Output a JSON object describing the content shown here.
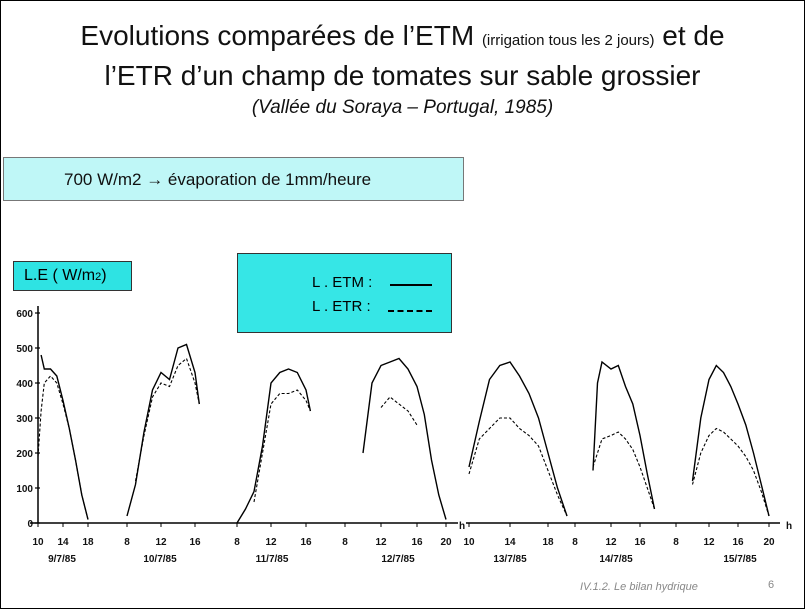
{
  "title": {
    "line1_main": "Evolutions comparées de l’ETM",
    "line1_small": "(irrigation tous les 2 jours)",
    "line1_end": "et de",
    "line2": "l’ETR d’un champ de tomates sur sable grossier",
    "line3": "(Vallée du Soraya – Portugal, 1985)"
  },
  "note": "700 W/m2 → évaporation de 1mm/heure",
  "ylabel_main": "L.E ( W/m",
  "ylabel_sub": "2",
  "ylabel_end": ")",
  "legend": {
    "etm": "L . ETM :",
    "etr": "L . ETR :"
  },
  "footer": {
    "text": "IV.1.2. Le bilan hydrique",
    "page": "6"
  },
  "chart_data": {
    "type": "line",
    "ylim": [
      0,
      600
    ],
    "yticks": [
      "0",
      "100",
      "200",
      "300",
      "400",
      "500",
      "600"
    ],
    "x_unit_label": "h",
    "hours_axis": [
      "10",
      "14",
      "18",
      "8",
      "12",
      "16",
      "8",
      "12",
      "16",
      "8",
      "12",
      "16",
      "20",
      "10",
      "14",
      "18",
      "8",
      "12",
      "16",
      "8",
      "12",
      "16",
      "20"
    ],
    "series": [
      {
        "name": "L . ETM",
        "days": [
          {
            "date": "9/7/85",
            "points": [
              [
                10.5,
                480
              ],
              [
                11,
                440
              ],
              [
                12,
                440
              ],
              [
                13,
                420
              ],
              [
                14,
                350
              ],
              [
                15,
                270
              ],
              [
                16,
                180
              ],
              [
                17,
                80
              ],
              [
                18,
                10
              ]
            ]
          },
          {
            "date": "10/7/85",
            "points": [
              [
                8,
                20
              ],
              [
                9,
                110
              ],
              [
                10,
                260
              ],
              [
                11,
                380
              ],
              [
                12,
                430
              ],
              [
                13,
                410
              ],
              [
                14,
                500
              ],
              [
                15,
                510
              ],
              [
                16,
                430
              ],
              [
                16.5,
                340
              ]
            ]
          },
          {
            "date": "11/7/85",
            "points": [
              [
                8,
                0
              ],
              [
                9,
                40
              ],
              [
                10,
                90
              ],
              [
                11,
                220
              ],
              [
                12,
                400
              ],
              [
                13,
                430
              ],
              [
                14,
                440
              ],
              [
                15,
                430
              ],
              [
                16,
                380
              ],
              [
                16.5,
                320
              ]
            ]
          },
          {
            "date": "12/7/85",
            "points": [
              [
                10,
                200
              ],
              [
                11,
                400
              ],
              [
                12,
                450
              ],
              [
                13,
                460
              ],
              [
                14,
                470
              ],
              [
                15,
                440
              ],
              [
                16,
                390
              ],
              [
                17,
                310
              ],
              [
                18,
                180
              ],
              [
                19,
                80
              ],
              [
                20,
                10
              ]
            ]
          },
          {
            "date": "13/7/85",
            "points": [
              [
                10,
                160
              ],
              [
                11,
                290
              ],
              [
                12,
                410
              ],
              [
                13,
                450
              ],
              [
                14,
                460
              ],
              [
                15,
                420
              ],
              [
                16,
                370
              ],
              [
                17,
                300
              ],
              [
                18,
                200
              ],
              [
                19,
                100
              ],
              [
                20,
                20
              ]
            ]
          },
          {
            "date": "14/7/85",
            "points": [
              [
                10,
                150
              ],
              [
                10.5,
                400
              ],
              [
                11,
                460
              ],
              [
                12,
                440
              ],
              [
                13,
                450
              ],
              [
                14,
                390
              ],
              [
                15,
                340
              ],
              [
                16,
                250
              ],
              [
                17,
                140
              ],
              [
                18,
                40
              ]
            ]
          },
          {
            "date": "15/7/85",
            "points": [
              [
                10,
                120
              ],
              [
                11,
                300
              ],
              [
                12,
                410
              ],
              [
                13,
                450
              ],
              [
                14,
                430
              ],
              [
                15,
                390
              ],
              [
                16,
                340
              ],
              [
                17,
                280
              ],
              [
                18,
                200
              ],
              [
                19,
                110
              ],
              [
                20,
                20
              ]
            ]
          }
        ]
      },
      {
        "name": "L . ETR",
        "days": [
          {
            "date": "9/7/85",
            "points": [
              [
                10,
                190
              ],
              [
                10.5,
                320
              ],
              [
                11,
                400
              ],
              [
                12,
                420
              ],
              [
                13,
                400
              ],
              [
                14,
                340
              ],
              [
                15,
                270
              ],
              [
                16,
                180
              ],
              [
                17,
                80
              ],
              [
                18,
                10
              ]
            ]
          },
          {
            "date": "10/7/85",
            "points": [
              [
                9,
                120
              ],
              [
                10,
                250
              ],
              [
                11,
                360
              ],
              [
                12,
                400
              ],
              [
                13,
                390
              ],
              [
                14,
                450
              ],
              [
                15,
                470
              ],
              [
                16,
                400
              ],
              [
                16.5,
                340
              ]
            ]
          },
          {
            "date": "11/7/85",
            "points": [
              [
                10,
                60
              ],
              [
                11,
                200
              ],
              [
                12,
                340
              ],
              [
                13,
                370
              ],
              [
                14,
                370
              ],
              [
                15,
                380
              ],
              [
                16,
                350
              ],
              [
                16.5,
                320
              ]
            ]
          },
          {
            "date": "12/7/85",
            "points": [
              [
                12,
                330
              ],
              [
                13,
                360
              ],
              [
                14,
                340
              ],
              [
                15,
                320
              ],
              [
                16,
                280
              ]
            ]
          },
          {
            "date": "13/7/85",
            "points": [
              [
                10,
                140
              ],
              [
                11,
                240
              ],
              [
                12,
                270
              ],
              [
                13,
                300
              ],
              [
                14,
                300
              ],
              [
                15,
                270
              ],
              [
                16,
                250
              ],
              [
                17,
                220
              ],
              [
                18,
                150
              ],
              [
                19,
                80
              ],
              [
                20,
                20
              ]
            ]
          },
          {
            "date": "14/7/85",
            "points": [
              [
                10,
                160
              ],
              [
                11,
                240
              ],
              [
                12,
                250
              ],
              [
                13,
                260
              ],
              [
                14,
                240
              ],
              [
                15,
                210
              ],
              [
                16,
                160
              ],
              [
                17,
                100
              ],
              [
                18,
                40
              ]
            ]
          },
          {
            "date": "15/7/85",
            "points": [
              [
                10,
                110
              ],
              [
                11,
                200
              ],
              [
                12,
                250
              ],
              [
                13,
                270
              ],
              [
                14,
                260
              ],
              [
                15,
                240
              ],
              [
                16,
                220
              ],
              [
                17,
                190
              ],
              [
                18,
                150
              ],
              [
                19,
                90
              ],
              [
                20,
                20
              ]
            ]
          }
        ]
      }
    ]
  }
}
